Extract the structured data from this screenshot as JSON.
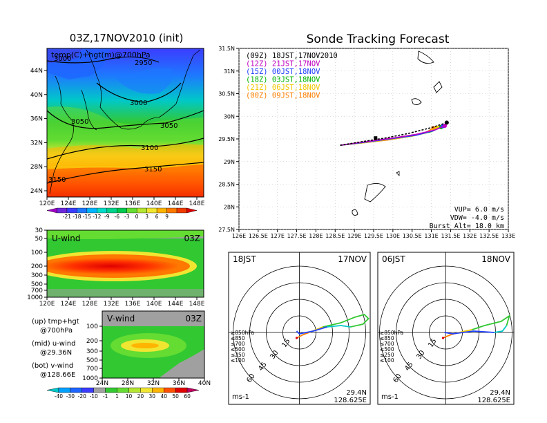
{
  "header": {
    "init_title": "03Z,17NOV2010 (init)",
    "main_title": "Sonde Tracking Forecast"
  },
  "map700": {
    "label": "temp(C)+hgt(m)@700hPa",
    "lat_ticks": [
      "44N",
      "40N",
      "36N",
      "32N",
      "28N",
      "24N"
    ],
    "lon_ticks": [
      "120E",
      "124E",
      "128E",
      "132E",
      "136E",
      "140E",
      "144E",
      "148E"
    ],
    "contours": [
      "3000",
      "2950",
      "3000",
      "3050",
      "3050",
      "3100",
      "3150",
      "3150"
    ],
    "colorbar": [
      "-21",
      "-18",
      "-15",
      "-12",
      "-9",
      "-6",
      "-3",
      "0",
      "3",
      "6",
      "9"
    ],
    "colorbar_colors": [
      "#a000c8",
      "#6e28dc",
      "#3c3cff",
      "#1e78ff",
      "#00b4ff",
      "#00dcc8",
      "#00d28c",
      "#00c850",
      "#64dc32",
      "#b4e632",
      "#f0e632",
      "#ffb400",
      "#ff7800",
      "#f03c00",
      "#dc0000"
    ]
  },
  "uwind": {
    "label": "U-wind",
    "time": "03Z",
    "p_ticks": [
      "30",
      "50",
      "100",
      "200",
      "300",
      "500",
      "700",
      "1000"
    ],
    "lon_ticks": [
      "120E",
      "124E",
      "128E",
      "132E",
      "136E",
      "140E",
      "144E",
      "148E"
    ]
  },
  "vwind": {
    "label": "V-wind",
    "time": "03Z",
    "p_ticks": [
      "100",
      "200",
      "300",
      "500",
      "700",
      "1000"
    ],
    "lat_ticks": [
      "24N",
      "28N",
      "32N",
      "36N",
      "40N"
    ],
    "colorbar": [
      "-40",
      "-30",
      "-20",
      "-10",
      "-1",
      "1",
      "10",
      "20",
      "30",
      "40",
      "50",
      "60"
    ],
    "colorbar_colors": [
      "#00c8c8",
      "#00a0ff",
      "#1e64ff",
      "#3c3cff",
      "#a0a0a0",
      "#32c832",
      "#64dc32",
      "#b4e632",
      "#f0e632",
      "#ffb400",
      "#ff5000",
      "#e00000",
      "#c00060"
    ]
  },
  "legend_notes": [
    {
      "a": "(up) tmp+hgt",
      "b": "@700hPa"
    },
    {
      "a": "(mid) u-wind",
      "b": "@29.36N"
    },
    {
      "a": "(bot) v-wind",
      "b": "@128.66E"
    }
  ],
  "track": {
    "lat_ticks": [
      "31.5N",
      "31N",
      "30.5N",
      "30N",
      "29.5N",
      "29N",
      "28.5N",
      "28N",
      "27.5N"
    ],
    "lon_ticks": [
      "126E",
      "126.5E",
      "127E",
      "127.5E",
      "128E",
      "128.5E",
      "129E",
      "129.5E",
      "130E",
      "130.5E",
      "131E",
      "131.5E",
      "132E",
      "132.5E",
      "133E"
    ],
    "runs": [
      {
        "text": "(09Z)  18JST,17NOV2010",
        "color": "#000000"
      },
      {
        "text": "(12Z)  21JST,17NOV",
        "color": "#c000c0"
      },
      {
        "text": "(15Z)  00JST,18NOV",
        "color": "#2040ff"
      },
      {
        "text": "(18Z)  03JST,18NOV",
        "color": "#00b400"
      },
      {
        "text": "(21Z)  06JST,18NOV",
        "color": "#f0c800"
      },
      {
        "text": "(00Z)  09JST,18NOV",
        "color": "#ff8000"
      }
    ],
    "vup": "VUP=  6.0  m/s",
    "vdw": "VDW= -4.0  m/s",
    "burst": "Burst Alt=  18.0  km"
  },
  "chart_data": [
    {
      "type": "line",
      "title": "Sonde Tracking Forecast",
      "xlabel": "",
      "ylabel": "",
      "xlim": [
        126,
        133
      ],
      "ylim": [
        27.5,
        31.5
      ],
      "series": [
        {
          "name": "(09Z)  18JST,17NOV2010",
          "x": [
            128.63,
            129.2,
            129.8,
            130.4,
            131.0,
            131.4
          ],
          "y": [
            29.36,
            29.44,
            29.52,
            29.62,
            29.75,
            29.86
          ]
        },
        {
          "name": "(12Z)  21JST,17NOV",
          "x": [
            128.63,
            129.3,
            130.0,
            130.6,
            131.1,
            131.35
          ],
          "y": [
            29.36,
            29.44,
            29.52,
            29.6,
            29.7,
            29.79
          ]
        },
        {
          "name": "(15Z)  00JST,18NOV",
          "x": [
            128.63,
            129.3,
            130.0,
            130.6,
            131.05,
            131.3
          ],
          "y": [
            29.36,
            29.43,
            29.51,
            29.58,
            29.68,
            29.78
          ]
        },
        {
          "name": "(18Z)  03JST,18NOV",
          "x": [
            128.63,
            129.3,
            129.9,
            130.5,
            131.0,
            131.25
          ],
          "y": [
            29.36,
            29.43,
            29.5,
            29.57,
            29.66,
            29.76
          ]
        },
        {
          "name": "(21Z)  06JST,18NOV",
          "x": [
            128.63,
            129.3,
            129.9,
            130.5,
            130.95,
            131.15
          ],
          "y": [
            29.36,
            29.42,
            29.49,
            29.56,
            29.65,
            29.75
          ]
        },
        {
          "name": "(00Z)  09JST,18NOV",
          "x": [
            128.63,
            129.3,
            129.9,
            130.4,
            130.85,
            131.05
          ],
          "y": [
            29.36,
            29.42,
            29.48,
            29.55,
            29.64,
            29.74
          ]
        }
      ]
    }
  ],
  "hodographs": [
    {
      "time": "18JST",
      "date": "17NOV",
      "lat": "29.4N",
      "lon": "128.625E",
      "unit": "ms-1",
      "rings": [
        "15",
        "30",
        "45",
        "60"
      ],
      "levels": [
        {
          "label": "≥850hPa",
          "color": "#e00000"
        },
        {
          "label": "≤850",
          "color": "#ff8000"
        },
        {
          "label": "≤700",
          "color": "#f0c800"
        },
        {
          "label": "≤500",
          "color": "#32c832"
        },
        {
          "label": "≤250",
          "color": "#00c8c8"
        },
        {
          "label": "≤100",
          "color": "#2040ff"
        }
      ]
    },
    {
      "time": "06JST",
      "date": "18NOV",
      "lat": "29.4N",
      "lon": "128.625E",
      "unit": "ms-1",
      "rings": [
        "15",
        "30",
        "45",
        "60"
      ],
      "levels": [
        {
          "label": "≥850hPa",
          "color": "#e00000"
        },
        {
          "label": "≤850",
          "color": "#ff8000"
        },
        {
          "label": "≤700",
          "color": "#f0c800"
        },
        {
          "label": "≤500",
          "color": "#32c832"
        },
        {
          "label": "≤250",
          "color": "#00c8c8"
        },
        {
          "label": "≤100",
          "color": "#2040ff"
        }
      ]
    }
  ]
}
